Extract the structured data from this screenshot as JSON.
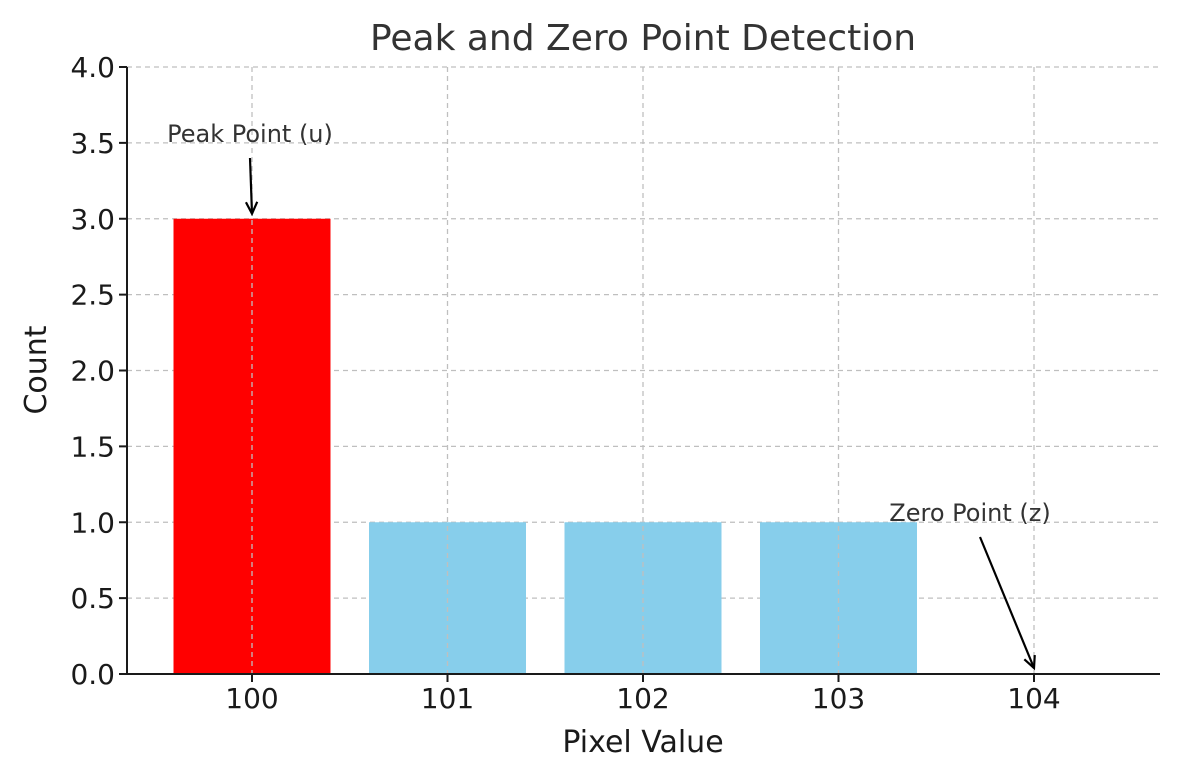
{
  "chart_data": {
    "type": "bar",
    "title": "Peak and Zero Point Detection",
    "xlabel": "Pixel Value",
    "ylabel": "Count",
    "categories": [
      "100",
      "101",
      "102",
      "103",
      "104"
    ],
    "values": [
      3,
      1,
      1,
      1,
      0
    ],
    "colors": [
      "#ff0000",
      "#87ceeb",
      "#87ceeb",
      "#87ceeb",
      "#87ceeb"
    ],
    "ylim": [
      0,
      4
    ],
    "yticks": [
      "0.0",
      "0.5",
      "1.0",
      "1.5",
      "2.0",
      "2.5",
      "3.0",
      "3.5",
      "4.0"
    ],
    "grid": true,
    "annotations": [
      {
        "text": "Peak Point (u)",
        "target_category": "100",
        "target_value": 3
      },
      {
        "text": "Zero Point (z)",
        "target_category": "104",
        "target_value": 0
      }
    ]
  }
}
